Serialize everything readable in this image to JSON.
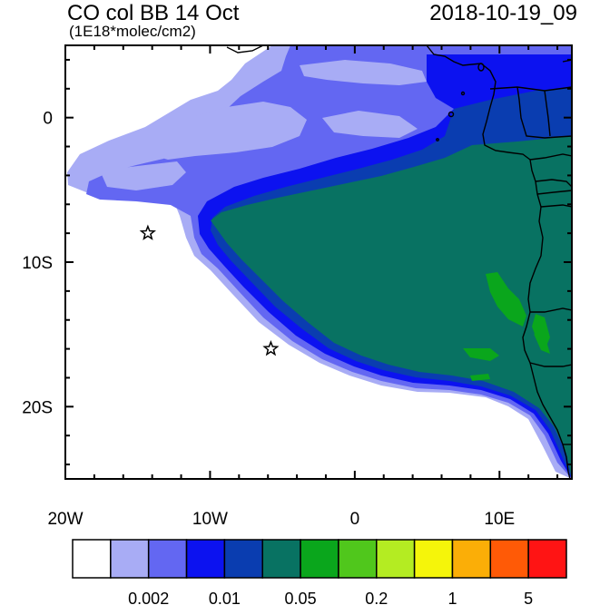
{
  "title": {
    "variable": "CO col BB 14 Oct",
    "units": "(1E18*molec/cm2)",
    "valid_time": "2018-10-19_09"
  },
  "map": {
    "lon_range": [
      -20,
      15
    ],
    "lat_range": [
      -25,
      5
    ],
    "x_ticks": [
      {
        "lon": -20,
        "label": "20W"
      },
      {
        "lon": -10,
        "label": "10W"
      },
      {
        "lon": 0,
        "label": "0"
      },
      {
        "lon": 10,
        "label": "10E"
      }
    ],
    "y_ticks": [
      {
        "lat": 0,
        "label": "0"
      },
      {
        "lat": -10,
        "label": "10S"
      },
      {
        "lat": -20,
        "label": "20S"
      }
    ],
    "markers": [
      {
        "name": "star",
        "lon": -14.3,
        "lat": -8.0
      },
      {
        "name": "star",
        "lon": -5.8,
        "lat": -16.0
      }
    ],
    "coastline_color": "#000000"
  },
  "colorbar": {
    "colors": [
      "#ffffff",
      "#a8acf5",
      "#6367f2",
      "#0c12f0",
      "#0a3db0",
      "#087262",
      "#0aa61c",
      "#50c71c",
      "#b4ec22",
      "#f5f50a",
      "#fbae07",
      "#ff5a06",
      "#ff1414"
    ],
    "labels": [
      {
        "text": "0.002",
        "boundary": 2
      },
      {
        "text": "0.01",
        "boundary": 4
      },
      {
        "text": "0.05",
        "boundary": 6
      },
      {
        "text": "0.2",
        "boundary": 8
      },
      {
        "text": "1",
        "boundary": 10
      },
      {
        "text": "5",
        "boundary": 12
      }
    ]
  }
}
